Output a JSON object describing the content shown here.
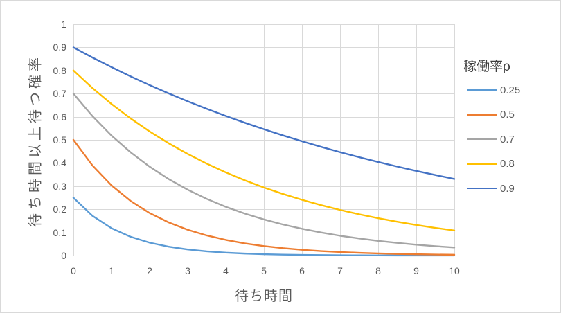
{
  "chart_data": {
    "type": "line",
    "title": "",
    "xlabel": "待ち時間",
    "ylabel": "待ち時間以上待つ確率",
    "legend_title": "稼働率ρ",
    "legend_position": "right",
    "grid": true,
    "xlim": [
      0,
      10
    ],
    "ylim": [
      0,
      1
    ],
    "x_tick_values": [
      0,
      1,
      2,
      3,
      4,
      5,
      6,
      7,
      8,
      9,
      10
    ],
    "x_tick_labels": [
      "0",
      "1",
      "2",
      "3",
      "4",
      "5",
      "6",
      "7",
      "8",
      "9",
      "10"
    ],
    "y_tick_values": [
      0,
      0.1,
      0.2,
      0.3,
      0.4,
      0.5,
      0.6,
      0.7,
      0.8,
      0.9,
      1
    ],
    "y_tick_labels": [
      "0",
      "0.1",
      "0.2",
      "0.3",
      "0.4",
      "0.5",
      "0.6",
      "0.7",
      "0.8",
      "0.9",
      "1"
    ],
    "x": [
      0,
      0.5,
      1,
      1.5,
      2,
      2.5,
      3,
      3.5,
      4,
      4.5,
      5,
      5.5,
      6,
      6.5,
      7,
      7.5,
      8,
      8.5,
      9,
      9.5,
      10
    ],
    "series": [
      {
        "name": "0.25",
        "color": "#5B9BD5",
        "values": [
          0.25,
          0.1718,
          0.1181,
          0.0812,
          0.0558,
          0.0383,
          0.0263,
          0.0181,
          0.0124,
          0.0086,
          0.0059,
          0.004,
          0.0028,
          0.0019,
          0.0013,
          0.0009,
          0.0006,
          0.0004,
          0.0003,
          0.0002,
          0.0001
        ]
      },
      {
        "name": "0.5",
        "color": "#ED7D31",
        "values": [
          0.5,
          0.3894,
          0.3033,
          0.2362,
          0.1839,
          0.1433,
          0.1116,
          0.0869,
          0.0677,
          0.0527,
          0.041,
          0.032,
          0.0249,
          0.0194,
          0.0151,
          0.0118,
          0.0092,
          0.0071,
          0.0056,
          0.0043,
          0.0034
        ]
      },
      {
        "name": "0.7",
        "color": "#A5A5A5",
        "values": [
          0.7,
          0.6025,
          0.5186,
          0.4463,
          0.3842,
          0.3307,
          0.2846,
          0.2449,
          0.2108,
          0.1815,
          0.1562,
          0.1344,
          0.1157,
          0.0996,
          0.0857,
          0.0738,
          0.0635,
          0.0547,
          0.0471,
          0.0405,
          0.0349
        ]
      },
      {
        "name": "0.8",
        "color": "#FFC000",
        "values": [
          0.8,
          0.7239,
          0.655,
          0.5927,
          0.5362,
          0.4852,
          0.4391,
          0.3973,
          0.3595,
          0.3253,
          0.2943,
          0.2663,
          0.241,
          0.218,
          0.1973,
          0.1785,
          0.1615,
          0.1462,
          0.1323,
          0.1197,
          0.1083
        ]
      },
      {
        "name": "0.9",
        "color": "#4472C4",
        "values": [
          0.9,
          0.8561,
          0.8144,
          0.7746,
          0.7368,
          0.7009,
          0.6667,
          0.6342,
          0.6033,
          0.5739,
          0.5459,
          0.5193,
          0.4939,
          0.4698,
          0.4469,
          0.4251,
          0.4044,
          0.3847,
          0.3659,
          0.3481,
          0.3311
        ]
      }
    ]
  },
  "colors": {
    "background": "#FFFFFF",
    "chart_border": "#D9D9D9",
    "gridline": "#D9D9D9",
    "axis_line": "#CFCFCF",
    "tick_text": "#595959",
    "axis_title_text": "#595959",
    "legend_title_text": "#3F3F3F",
    "legend_entry_text": "#595959"
  }
}
